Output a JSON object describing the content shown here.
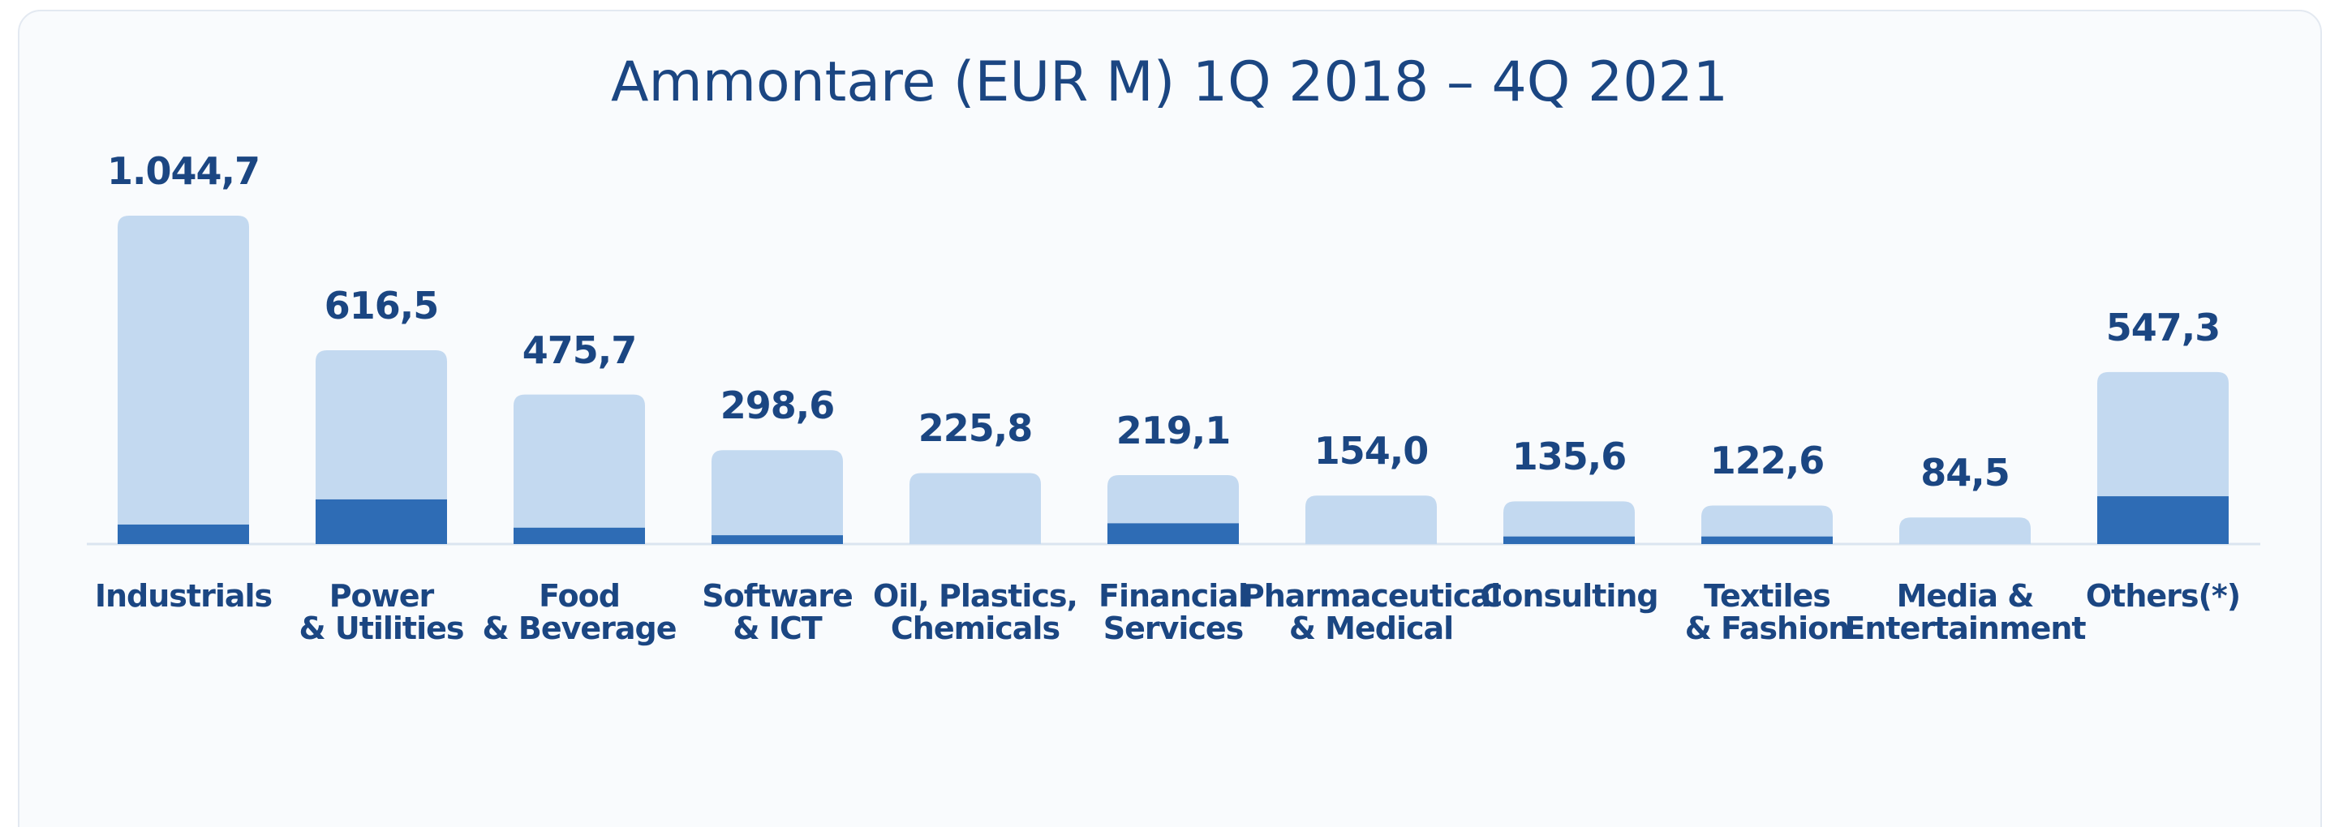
{
  "chart_data": {
    "type": "bar",
    "title": "Ammontare (EUR M) 1Q 2018 – 4Q 2021",
    "categories": [
      "Industrials",
      "Power\n& Utilities",
      "Food\n& Beverage",
      "Software\n& ICT",
      "Oil, Plastics,\nChemicals",
      "Financial\nServices",
      "Pharmaceutical\n& Medical",
      "Consulting",
      "Textiles\n& Fashion",
      "Media &\nEntertainment",
      "Others(*)"
    ],
    "series": [
      {
        "color": "#c3d9f0",
        "values": [
          1044.7,
          616.5,
          475.7,
          298.6,
          225.8,
          219.1,
          154.0,
          135.6,
          122.6,
          84.5,
          547.3
        ],
        "value_labels": [
          "1.044,7",
          "616,5",
          "475,7",
          "298,6",
          "225,8",
          "219,1",
          "154,0",
          "135,6",
          "122,6",
          "84,5",
          "547,3"
        ]
      },
      {
        "color": "#2e6cb5",
        "values": [
          62,
          142,
          52,
          28,
          0,
          66,
          0,
          24,
          24,
          0,
          152
        ]
      }
    ]
  }
}
